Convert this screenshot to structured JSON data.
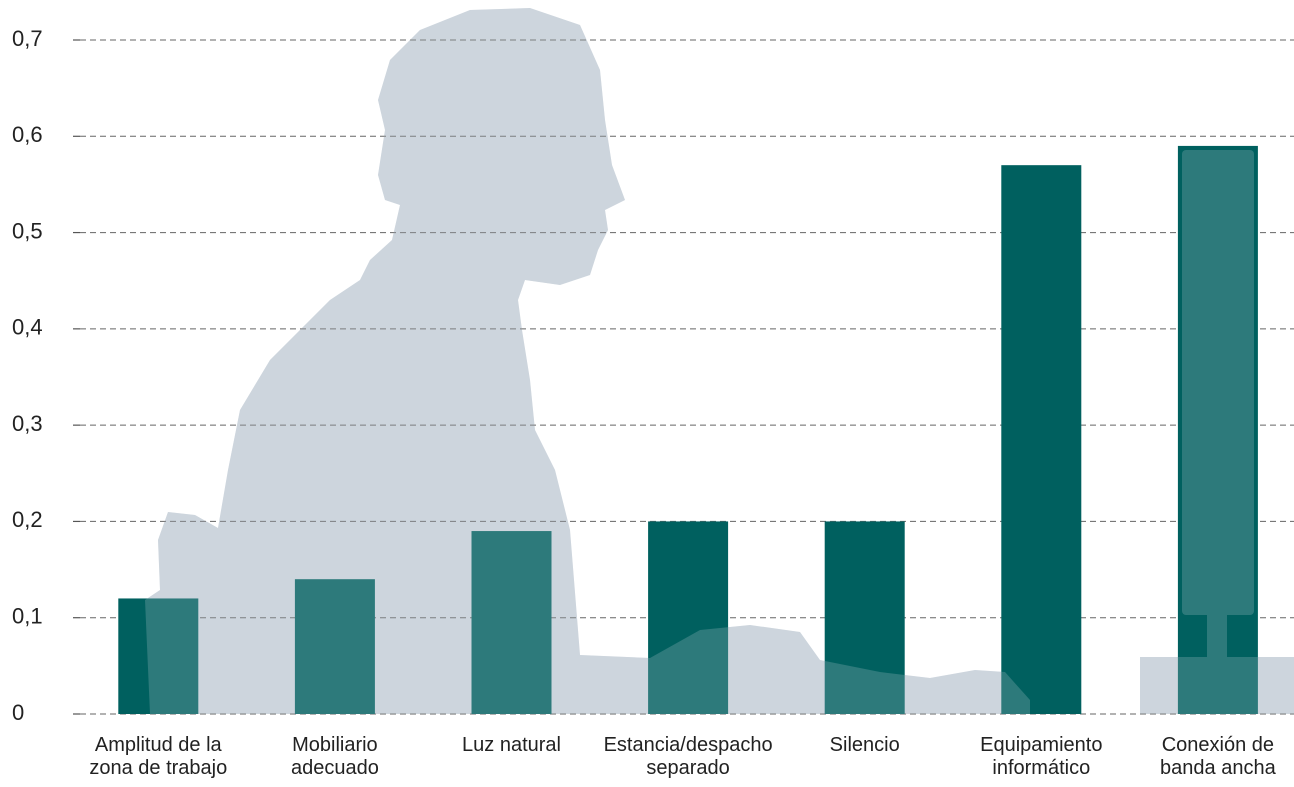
{
  "chart_data": {
    "type": "bar",
    "categories": [
      "Amplitud de la\nzona de trabajo",
      "Mobiliario\nadecuado",
      "Luz natural",
      "Estancia/despacho\nseparado",
      "Silencio",
      "Equipamiento\ninformático",
      "Conexión de\nbanda ancha"
    ],
    "values": [
      0.12,
      0.14,
      0.19,
      0.2,
      0.2,
      0.57,
      0.59
    ],
    "color": "#00605f",
    "ylim": [
      0,
      0.7
    ],
    "yticks": [
      0,
      {
        "value": 0.1,
        "label": "0,1"
      },
      {
        "value": 0.2,
        "label": "0,2"
      },
      {
        "value": 0.3,
        "label": "0,3"
      },
      {
        "value": 0.4,
        "label": "0,4"
      },
      {
        "value": 0.5,
        "label": "0,5"
      },
      {
        "value": 0.6,
        "label": "0,6"
      },
      {
        "value": 0.7,
        "label": "0,7"
      }
    ],
    "grid": true
  }
}
